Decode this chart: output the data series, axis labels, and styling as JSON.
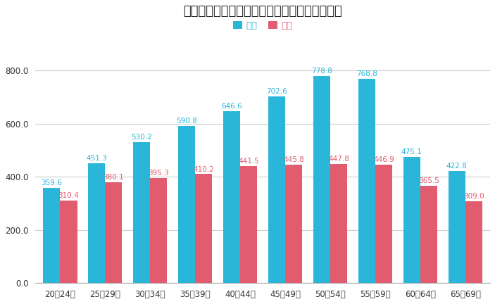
{
  "title": "沖縄県の男女別平均年収の推移（単位：万円）",
  "categories": [
    "20～24歳",
    "25～29歳",
    "30～34歳",
    "35～39歳",
    "40～44歳",
    "45～49歳",
    "50～54歳",
    "55～59歳",
    "60～64歳",
    "65～69歳"
  ],
  "male_values": [
    359.6,
    451.3,
    530.2,
    590.8,
    646.6,
    702.6,
    778.8,
    768.8,
    475.1,
    422.8
  ],
  "female_values": [
    310.4,
    380.1,
    395.3,
    410.2,
    441.5,
    445.8,
    447.8,
    446.9,
    365.5,
    309.0
  ],
  "male_color": "#29b6d8",
  "female_color": "#e05c6e",
  "male_label": "男性",
  "female_label": "女性",
  "ylim": [
    0,
    900
  ],
  "yticks": [
    0.0,
    200.0,
    400.0,
    600.0,
    800.0
  ],
  "background_color": "#ffffff",
  "grid_color": "#cccccc",
  "bar_width": 0.38,
  "title_fontsize": 13,
  "label_fontsize": 7.5,
  "tick_fontsize": 8.5,
  "legend_fontsize": 9.5
}
